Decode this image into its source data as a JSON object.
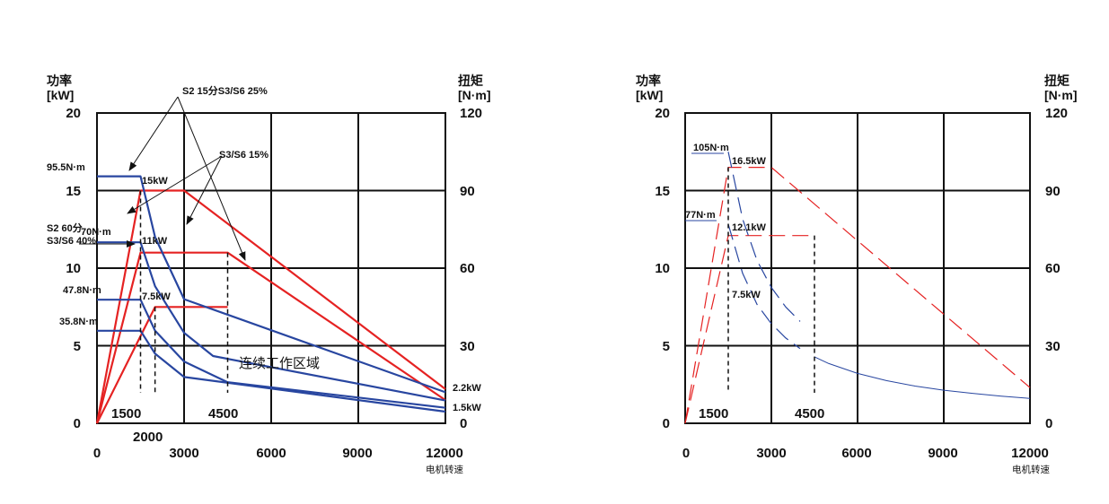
{
  "chart_data": [
    {
      "type": "line",
      "left_axis": {
        "title_line1": "功率",
        "title_line2": "[kW]",
        "ylim": [
          0,
          20
        ],
        "ticks": [
          "0",
          "5",
          "10",
          "15",
          "20"
        ]
      },
      "right_axis": {
        "title_line1": "扭矩",
        "title_line2": "[N·m]",
        "ylim": [
          0,
          120
        ],
        "ticks": [
          "0",
          "30",
          "60",
          "90",
          "120"
        ]
      },
      "x_axis": {
        "xlabel": "电机转速",
        "xlim": [
          0,
          12000
        ],
        "ticks": [
          "0",
          "3000",
          "6000",
          "9000",
          "12000"
        ]
      },
      "speed_marks": {
        "s1500": "1500",
        "s2000": "2000",
        "s4500": "4500"
      },
      "zone_label": "连续工作区域",
      "series": [
        {
          "name": "S2 15分 S3/S6 25% power",
          "kind": "power",
          "x": [
            0,
            1500,
            3000,
            12000
          ],
          "y": [
            0,
            15,
            15,
            2.2
          ]
        },
        {
          "name": "S3/S6 15% power",
          "kind": "power",
          "x": [
            0,
            1500,
            4500,
            12000
          ],
          "y": [
            0,
            11,
            11,
            1.5
          ]
        },
        {
          "name": "S2 60分 S3/S6 40% power",
          "kind": "power",
          "x": [
            0,
            2000,
            4500
          ],
          "y": [
            0,
            7.5,
            7.5
          ]
        },
        {
          "name": "95.5N·m torque",
          "kind": "torque",
          "x": [
            0,
            1500,
            2000,
            3000,
            12000
          ],
          "y": [
            95.5,
            95.5,
            72,
            48,
            12
          ]
        },
        {
          "name": "70N·m torque",
          "kind": "torque",
          "x": [
            0,
            1500,
            2000,
            3000,
            4000,
            12000
          ],
          "y": [
            70,
            70,
            53,
            35,
            26,
            8.8
          ]
        },
        {
          "name": "47.8N·m torque",
          "kind": "torque",
          "x": [
            0,
            1500,
            2000,
            3000,
            4500,
            12000
          ],
          "y": [
            47.8,
            47.8,
            35.8,
            23.9,
            15.9,
            6
          ]
        },
        {
          "name": "35.8N·m torque",
          "kind": "torque",
          "x": [
            0,
            1500,
            2000,
            3000,
            12000
          ],
          "y": [
            35.8,
            35.8,
            26.9,
            17.9,
            4.5
          ]
        }
      ],
      "labels": {
        "t95": "95.5N·m",
        "t70": "70N·m",
        "t478": "47.8N·m",
        "t358": "35.8N·m",
        "p15": "15kW",
        "p11": "11kW",
        "p75": "7.5kW",
        "p22": "2.2kW",
        "p15b": "1.5kW",
        "s2_15": "S2 15分S3/S6 25%",
        "s3_15": "S3/S6 15%",
        "s2_60_line1": "S2 60分",
        "s2_60_line2": "S3/S6 40%"
      }
    },
    {
      "type": "line",
      "left_axis": {
        "title_line1": "功率",
        "title_line2": "[kW]",
        "ylim": [
          0,
          20
        ],
        "ticks": [
          "0",
          "5",
          "10",
          "15",
          "20"
        ]
      },
      "right_axis": {
        "title_line1": "扭矩",
        "title_line2": "[N·m]",
        "ylim": [
          0,
          120
        ],
        "ticks": [
          "0",
          "30",
          "60",
          "90",
          "120"
        ]
      },
      "x_axis": {
        "xlabel": "电机转速",
        "xlim": [
          0,
          12000
        ],
        "ticks": [
          "0",
          "3000",
          "6000",
          "9000",
          "12000"
        ]
      },
      "speed_marks": {
        "s1500": "1500",
        "s4500": "4500"
      },
      "series": [
        {
          "name": "16.5kW power (dashed)",
          "kind": "power",
          "style": "dashed",
          "x": [
            0,
            1500,
            3000,
            12000
          ],
          "y": [
            0,
            16.5,
            16.5,
            2.3
          ]
        },
        {
          "name": "12.1kW power (dashed)",
          "kind": "power",
          "style": "dashed",
          "x": [
            0,
            1500,
            4500
          ],
          "y": [
            0,
            12.1,
            12.1
          ]
        },
        {
          "name": "105N·m torque (dashed)",
          "kind": "torque",
          "style": "dashed",
          "x": [
            1500,
            2000,
            2500,
            3000,
            3500,
            4000
          ],
          "y": [
            105,
            79,
            63,
            52.5,
            45,
            39.4
          ]
        },
        {
          "name": "77N·m torque (dashed)",
          "kind": "torque",
          "style": "dashed",
          "x": [
            1500,
            2000,
            2500,
            3000,
            3500,
            4000
          ],
          "y": [
            77,
            58,
            46,
            38.5,
            33,
            28.9
          ]
        },
        {
          "name": "torque continuous",
          "kind": "torque",
          "style": "solid",
          "x": [
            4500,
            5000,
            6000,
            7000,
            8000,
            9000,
            10000,
            11000,
            12000
          ],
          "y": [
            25.7,
            23.1,
            19.3,
            16.5,
            14.4,
            12.8,
            11.6,
            10.5,
            9.6
          ]
        }
      ],
      "labels": {
        "t105": "105N·m",
        "t77": "77N·m",
        "p165": "16.5kW",
        "p121": "12.1kW",
        "p75": "7.5kW"
      }
    }
  ]
}
